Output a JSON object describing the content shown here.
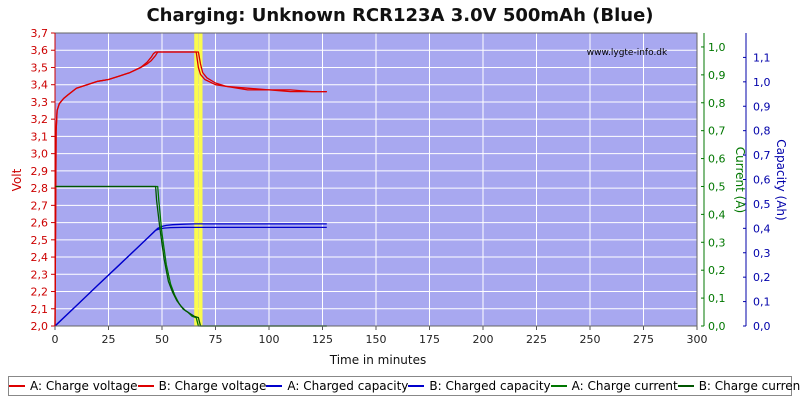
{
  "chart_data": {
    "type": "line",
    "title": "Charging: Unknown RCR123A 3.0V 500mAh (Blue)",
    "watermark": "www.lygte-info.dk",
    "xlabel": "Time in minutes",
    "ylabel_left": "Volt",
    "ylabel_right1": "Current (A)",
    "ylabel_right2": "Capacity (Ah)",
    "xlim": [
      0,
      300
    ],
    "ylim_left": [
      2.0,
      3.7
    ],
    "ylim_current": [
      0,
      1.05
    ],
    "ylim_capacity": [
      0,
      1.2
    ],
    "x_ticks": [
      "0",
      "25",
      "50",
      "75",
      "100",
      "125",
      "150",
      "175",
      "200",
      "225",
      "250",
      "275",
      "300"
    ],
    "y_ticks_left": [
      "2,0",
      "2,1",
      "2,2",
      "2,3",
      "2,4",
      "2,5",
      "2,6",
      "2,7",
      "2,8",
      "2,9",
      "3,0",
      "3,1",
      "3,2",
      "3,3",
      "3,4",
      "3,5",
      "3,6",
      "3,7"
    ],
    "y_ticks_current": [
      "0,0",
      "0,1",
      "0,2",
      "0,3",
      "0,4",
      "0,5",
      "0,6",
      "0,7",
      "0,8",
      "0,9",
      "1,0"
    ],
    "y_ticks_capacity": [
      "0,0",
      "0,1",
      "0,2",
      "0,3",
      "0,4",
      "0,5",
      "0,6",
      "0,7",
      "0,8",
      "0,9",
      "1,0",
      "1,1"
    ],
    "grid": true,
    "legend_position": "bottom",
    "colors": {
      "plot_bg": "#a8a8f0",
      "grid": "#ffffff",
      "voltage": "#dd0000",
      "capacity": "#0000cc",
      "current": "#007700",
      "marker": "#ffff44",
      "volt_axis": "#cc0000",
      "current_axis": "#007700",
      "capacity_axis": "#0000aa"
    },
    "markers_x": [
      66,
      68
    ],
    "series": [
      {
        "name": "A: Charge voltage",
        "axis": "volt",
        "color": "#dd0000",
        "x": [
          0,
          0.5,
          1,
          2,
          4,
          6,
          8,
          10,
          15,
          20,
          25,
          30,
          35,
          40,
          43,
          45,
          47,
          48,
          50,
          55,
          60,
          64,
          66,
          67,
          68,
          70,
          75,
          80,
          90,
          100,
          110,
          120,
          127
        ],
        "y": [
          2.0,
          3.13,
          3.25,
          3.29,
          3.32,
          3.34,
          3.36,
          3.38,
          3.4,
          3.42,
          3.43,
          3.45,
          3.47,
          3.5,
          3.52,
          3.54,
          3.57,
          3.59,
          3.59,
          3.59,
          3.59,
          3.59,
          3.59,
          3.5,
          3.46,
          3.43,
          3.4,
          3.39,
          3.37,
          3.37,
          3.36,
          3.36,
          3.36
        ]
      },
      {
        "name": "B: Charge voltage",
        "axis": "volt",
        "color": "#dd0000",
        "x": [
          0,
          0.5,
          1,
          2,
          4,
          6,
          8,
          10,
          15,
          20,
          25,
          30,
          35,
          40,
          43,
          45,
          46,
          47,
          50,
          55,
          60,
          64,
          67,
          68,
          69,
          71,
          75,
          80,
          90,
          100,
          110,
          120,
          127
        ],
        "y": [
          2.0,
          3.13,
          3.25,
          3.29,
          3.32,
          3.34,
          3.36,
          3.38,
          3.4,
          3.42,
          3.43,
          3.45,
          3.47,
          3.5,
          3.53,
          3.56,
          3.58,
          3.59,
          3.59,
          3.59,
          3.59,
          3.59,
          3.59,
          3.52,
          3.47,
          3.44,
          3.41,
          3.39,
          3.38,
          3.37,
          3.37,
          3.36,
          3.36
        ]
      },
      {
        "name": "A: Charged capacity",
        "axis": "capacity",
        "color": "#0000cc",
        "x": [
          0,
          10,
          20,
          30,
          40,
          47,
          48,
          50,
          52,
          55,
          60,
          65,
          70,
          80,
          100,
          127
        ],
        "y": [
          0.0,
          0.083,
          0.167,
          0.25,
          0.333,
          0.392,
          0.4,
          0.408,
          0.412,
          0.415,
          0.417,
          0.418,
          0.418,
          0.418,
          0.418,
          0.418
        ]
      },
      {
        "name": "B: Charged capacity",
        "axis": "capacity",
        "color": "#0000cc",
        "x": [
          0,
          10,
          20,
          30,
          40,
          46,
          47,
          49,
          51,
          54,
          60,
          65,
          70,
          80,
          100,
          127
        ],
        "y": [
          0.0,
          0.083,
          0.167,
          0.25,
          0.333,
          0.383,
          0.392,
          0.398,
          0.401,
          0.403,
          0.404,
          0.404,
          0.404,
          0.404,
          0.404,
          0.404
        ]
      },
      {
        "name": "A: Charge current",
        "axis": "current",
        "color": "#007700",
        "x": [
          0,
          48,
          48.5,
          50,
          52,
          54,
          56,
          58,
          60,
          62,
          64,
          66,
          67,
          68,
          70,
          80,
          100,
          127
        ],
        "y": [
          0.5,
          0.5,
          0.45,
          0.33,
          0.22,
          0.15,
          0.11,
          0.08,
          0.06,
          0.05,
          0.035,
          0.03,
          0.0,
          0.0,
          0.0,
          0.0,
          0.0,
          0.0
        ]
      },
      {
        "name": "B: Charge current",
        "axis": "current",
        "color": "#005500",
        "x": [
          0,
          47,
          47.5,
          49,
          51,
          53,
          55,
          57,
          59,
          61,
          63,
          65,
          67,
          68,
          70,
          80,
          100,
          127
        ],
        "y": [
          0.5,
          0.5,
          0.45,
          0.35,
          0.24,
          0.16,
          0.12,
          0.09,
          0.07,
          0.055,
          0.045,
          0.035,
          0.03,
          0.0,
          0.0,
          0.0,
          0.0,
          0.0
        ]
      }
    ]
  }
}
